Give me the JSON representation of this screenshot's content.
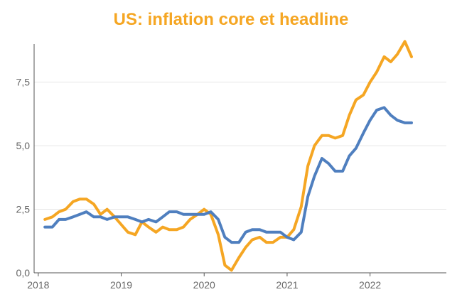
{
  "chart_data": {
    "type": "line",
    "title": "US: inflation core et headline",
    "xlabel": "",
    "ylabel": "",
    "xlim": [
      2017.95,
      2022.92
    ],
    "ylim": [
      0,
      9.0
    ],
    "grid": true,
    "legend": "none",
    "x_ticks": [
      2018,
      2019,
      2020,
      2021,
      2022
    ],
    "x_tick_labels": [
      "2018",
      "2019",
      "2020",
      "2021",
      "2022"
    ],
    "y_ticks": [
      0,
      2.5,
      5,
      7.5
    ],
    "y_tick_labels": [
      "0,0",
      "2,5",
      "5,0",
      "7,5"
    ],
    "colors": {
      "title": "#f5a623",
      "headline": "#f5a623",
      "core": "#4f7fbf",
      "axis": "#555555",
      "grid": "#e6e6e6"
    },
    "series": [
      {
        "x": [
          2018.08,
          2018.17,
          2018.25,
          2018.33,
          2018.42,
          2018.5,
          2018.58,
          2018.67,
          2018.75,
          2018.83,
          2018.92,
          2019.0,
          2019.08,
          2019.17,
          2019.25,
          2019.33,
          2019.42,
          2019.5,
          2019.58,
          2019.67,
          2019.75,
          2019.83,
          2019.92,
          2020.0,
          2020.08,
          2020.17,
          2020.25,
          2020.33,
          2020.42,
          2020.5,
          2020.58,
          2020.67,
          2020.75,
          2020.83,
          2020.92,
          2021.0,
          2021.08,
          2021.17,
          2021.25,
          2021.33,
          2021.42,
          2021.5,
          2021.58,
          2021.67,
          2021.75,
          2021.83,
          2021.92,
          2022.0,
          2022.08,
          2022.17,
          2022.25,
          2022.33,
          2022.42,
          2022.5,
          2022.58
        ],
        "values": [
          2.1,
          2.2,
          2.4,
          2.5,
          2.8,
          2.9,
          2.9,
          2.7,
          2.3,
          2.5,
          2.2,
          1.9,
          1.6,
          1.5,
          2.0,
          1.8,
          1.6,
          1.8,
          1.7,
          1.7,
          1.8,
          2.1,
          2.3,
          2.5,
          2.3,
          1.5,
          0.3,
          0.1,
          0.6,
          1.0,
          1.3,
          1.4,
          1.2,
          1.2,
          1.4,
          1.4,
          1.7,
          2.6,
          4.2,
          5.0,
          5.4,
          5.4,
          5.3,
          5.4,
          6.2,
          6.8,
          7.0,
          7.5,
          7.9,
          8.5,
          8.3,
          8.6,
          9.1,
          8.5,
          null
        ],
        "style": "headline"
      },
      {
        "x": [
          2018.08,
          2018.17,
          2018.25,
          2018.33,
          2018.42,
          2018.5,
          2018.58,
          2018.67,
          2018.75,
          2018.83,
          2018.92,
          2019.0,
          2019.08,
          2019.17,
          2019.25,
          2019.33,
          2019.42,
          2019.5,
          2019.58,
          2019.67,
          2019.75,
          2019.83,
          2019.92,
          2020.0,
          2020.08,
          2020.17,
          2020.25,
          2020.33,
          2020.42,
          2020.5,
          2020.58,
          2020.67,
          2020.75,
          2020.83,
          2020.92,
          2021.0,
          2021.08,
          2021.17,
          2021.25,
          2021.33,
          2021.42,
          2021.5,
          2021.58,
          2021.67,
          2021.75,
          2021.83,
          2021.92,
          2022.0,
          2022.08,
          2022.17,
          2022.25,
          2022.33,
          2022.42,
          2022.5,
          2022.58
        ],
        "values": [
          1.8,
          1.8,
          2.1,
          2.1,
          2.2,
          2.3,
          2.4,
          2.2,
          2.2,
          2.1,
          2.2,
          2.2,
          2.2,
          2.1,
          2.0,
          2.1,
          2.0,
          2.2,
          2.4,
          2.4,
          2.3,
          2.3,
          2.3,
          2.3,
          2.4,
          2.1,
          1.4,
          1.2,
          1.2,
          1.6,
          1.7,
          1.7,
          1.6,
          1.6,
          1.6,
          1.4,
          1.3,
          1.6,
          3.0,
          3.8,
          4.5,
          4.3,
          4.0,
          4.0,
          4.6,
          4.9,
          5.5,
          6.0,
          6.4,
          6.5,
          6.2,
          6.0,
          5.9,
          5.9,
          null
        ],
        "style": "core"
      }
    ]
  }
}
